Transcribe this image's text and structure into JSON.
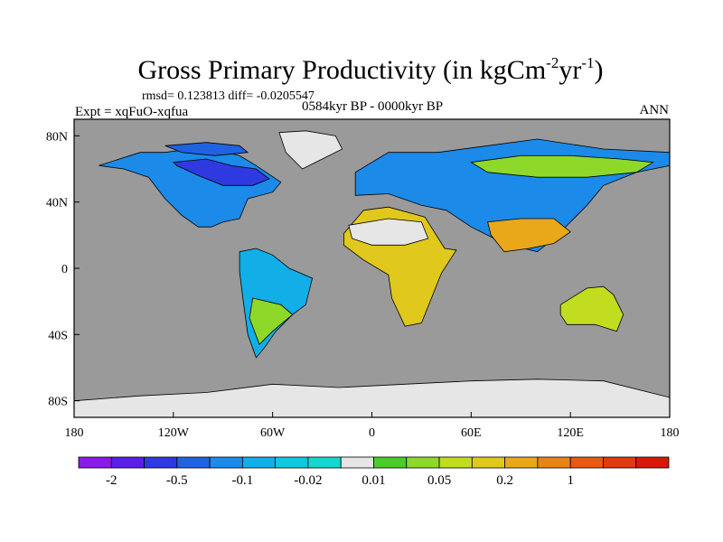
{
  "chart_data": {
    "type": "heatmap",
    "title": {
      "main": "Gross Primary Productivity (in kgCm",
      "exp1": "-2",
      "mid": "yr",
      "exp2": "-1",
      "close": ")"
    },
    "stats_line": "rmsd= 0.123813 diff= -0.0205547",
    "experiment": "Expt = xqFuO-xqfua",
    "period": "0584kyr BP - 0000kyr BP",
    "season": "ANN",
    "x_ticks": [
      {
        "label": "180",
        "lon": -180
      },
      {
        "label": "120W",
        "lon": -120
      },
      {
        "label": "60W",
        "lon": -60
      },
      {
        "label": "0",
        "lon": 0
      },
      {
        "label": "60E",
        "lon": 60
      },
      {
        "label": "120E",
        "lon": 120
      },
      {
        "label": "180",
        "lon": 180
      }
    ],
    "y_ticks": [
      {
        "label": "80N",
        "lat": 80
      },
      {
        "label": "40N",
        "lat": 40
      },
      {
        "label": "0",
        "lat": 0
      },
      {
        "label": "40S",
        "lat": -40
      },
      {
        "label": "80S",
        "lat": -80
      }
    ],
    "xlim": [
      -180,
      180
    ],
    "ylim": [
      -90,
      90
    ],
    "ocean_color": "#9a9a9a",
    "missing_color": "#e6e6e6",
    "colorbar": {
      "colors": [
        "#8b1ae8",
        "#5a1ee8",
        "#2e3ae0",
        "#1f63e0",
        "#1b8ae8",
        "#12aee8",
        "#10c8e0",
        "#14d8d0",
        "#e6e6e6",
        "#4ccc28",
        "#8ed82a",
        "#c2dc20",
        "#e0c81c",
        "#e8a81a",
        "#e88414",
        "#e85a12",
        "#e03a10",
        "#d81808"
      ],
      "labels": [
        {
          "text": "-2",
          "index": 1
        },
        {
          "text": "-0.5",
          "index": 3
        },
        {
          "text": "-0.1",
          "index": 5
        },
        {
          "text": "-0.02",
          "index": 7
        },
        {
          "text": "0.01",
          "index": 9
        },
        {
          "text": "0.05",
          "index": 11
        },
        {
          "text": "0.2",
          "index": 13
        },
        {
          "text": "1",
          "index": 15
        }
      ]
    },
    "regions": [
      {
        "name": "north-america",
        "color": "#1b8ae8",
        "lon": [
          -165,
          -140,
          -125,
          -110,
          -95,
          -80,
          -70,
          -55,
          -60,
          -75,
          -80,
          -90,
          -97,
          -105,
          -115,
          -125,
          -135,
          -150,
          -165
        ],
        "lat": [
          62,
          70,
          70,
          72,
          72,
          68,
          62,
          52,
          46,
          42,
          30,
          28,
          25,
          25,
          32,
          42,
          55,
          60,
          62
        ]
      },
      {
        "name": "canada-core",
        "color": "#2e3ae0",
        "lon": [
          -120,
          -100,
          -85,
          -70,
          -62,
          -72,
          -90,
          -105,
          -118
        ],
        "lat": [
          64,
          66,
          62,
          60,
          54,
          50,
          50,
          56,
          62
        ]
      },
      {
        "name": "canada-arctic",
        "color": "#1f63e0",
        "lon": [
          -125,
          -100,
          -80,
          -75,
          -95,
          -115
        ],
        "lat": [
          74,
          76,
          74,
          70,
          68,
          70
        ]
      },
      {
        "name": "greenland",
        "color": "#e6e6e6",
        "lon": [
          -56,
          -40,
          -22,
          -18,
          -30,
          -42,
          -52
        ],
        "lat": [
          82,
          83,
          80,
          72,
          66,
          60,
          70
        ]
      },
      {
        "name": "south-america",
        "color": "#12aee8",
        "lon": [
          -80,
          -70,
          -60,
          -50,
          -36,
          -40,
          -48,
          -58,
          -65,
          -70,
          -75,
          -78,
          -80
        ],
        "lat": [
          10,
          12,
          8,
          0,
          -6,
          -22,
          -28,
          -38,
          -48,
          -54,
          -40,
          -18,
          -2
        ]
      },
      {
        "name": "sa-south",
        "color": "#8ed82a",
        "lon": [
          -72,
          -55,
          -48,
          -60,
          -68,
          -74
        ],
        "lat": [
          -18,
          -22,
          -28,
          -38,
          -46,
          -30
        ]
      },
      {
        "name": "africa",
        "color": "#e0c81c",
        "lon": [
          -17,
          -5,
          10,
          32,
          44,
          51,
          42,
          36,
          30,
          20,
          12,
          10,
          -5,
          -17
        ],
        "lat": [
          21,
          35,
          37,
          31,
          12,
          11,
          -3,
          -18,
          -33,
          -35,
          -18,
          -4,
          5,
          14
        ]
      },
      {
        "name": "sahara",
        "color": "#e6e6e6",
        "lon": [
          -14,
          10,
          30,
          34,
          20,
          0,
          -12
        ],
        "lat": [
          26,
          30,
          28,
          18,
          14,
          14,
          18
        ]
      },
      {
        "name": "eurasia",
        "color": "#1b8ae8",
        "lon": [
          -10,
          10,
          40,
          70,
          100,
          140,
          180,
          180,
          160,
          140,
          130,
          120,
          110,
          100,
          80,
          60,
          45,
          30,
          10,
          -10
        ],
        "lat": [
          58,
          70,
          70,
          74,
          78,
          72,
          70,
          62,
          58,
          50,
          38,
          28,
          18,
          10,
          15,
          25,
          35,
          38,
          45,
          44
        ]
      },
      {
        "name": "siberia-green",
        "color": "#8ed82a",
        "lon": [
          60,
          90,
          120,
          150,
          170,
          160,
          130,
          100,
          70
        ],
        "lat": [
          64,
          68,
          68,
          66,
          64,
          58,
          55,
          55,
          58
        ]
      },
      {
        "name": "india-china",
        "color": "#e8a81a",
        "lon": [
          70,
          90,
          110,
          120,
          110,
          95,
          80,
          72
        ],
        "lat": [
          28,
          30,
          30,
          22,
          15,
          12,
          10,
          20
        ]
      },
      {
        "name": "australia",
        "color": "#c2dc20",
        "lon": [
          114,
          130,
          140,
          146,
          152,
          148,
          135,
          118,
          114
        ],
        "lat": [
          -22,
          -12,
          -11,
          -16,
          -28,
          -38,
          -34,
          -34,
          -28
        ]
      },
      {
        "name": "antarctica",
        "color": "#e6e6e6",
        "lon": [
          -180,
          -140,
          -100,
          -60,
          -20,
          20,
          60,
          100,
          140,
          180,
          180,
          -180
        ],
        "lat": [
          -80,
          -77,
          -75,
          -70,
          -72,
          -70,
          -68,
          -67,
          -68,
          -78,
          -90,
          -90
        ]
      }
    ]
  }
}
